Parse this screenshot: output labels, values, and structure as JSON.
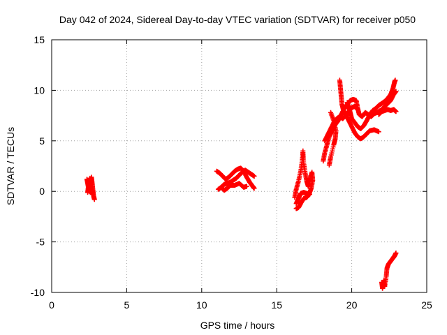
{
  "chart_data": {
    "type": "scatter",
    "title": "Day 042 of 2024, Sidereal Day-to-day VTEC variation (SDTVAR) for receiver p050",
    "xlabel": "GPS time / hours",
    "ylabel": "SDTVAR / TECUs",
    "xlim": [
      0,
      25
    ],
    "ylim": [
      -10,
      15
    ],
    "x_ticks": [
      0,
      5,
      10,
      15,
      20,
      25
    ],
    "y_ticks": [
      -10,
      -5,
      0,
      5,
      10,
      15
    ],
    "x_tick_labels": [
      "0",
      "5",
      "10",
      "15",
      "20",
      "25"
    ],
    "y_tick_labels": [
      "-10",
      "-5",
      "0",
      "5",
      "10",
      "15"
    ],
    "grid": true,
    "marker": "plus",
    "color": "#ff0000",
    "tracks": [
      [
        [
          2.35,
          1.2
        ],
        [
          2.4,
          0.8
        ],
        [
          2.45,
          0.4
        ],
        [
          2.5,
          0.0
        ],
        [
          2.55,
          0.3
        ],
        [
          2.6,
          0.9
        ],
        [
          2.65,
          1.4
        ],
        [
          2.7,
          0.8
        ],
        [
          2.75,
          0.1
        ],
        [
          2.8,
          -0.5
        ],
        [
          2.85,
          -0.8
        ]
      ],
      [
        [
          2.4,
          -0.1
        ],
        [
          2.45,
          0.5
        ],
        [
          2.5,
          1.0
        ],
        [
          2.55,
          1.3
        ],
        [
          2.6,
          0.6
        ],
        [
          2.65,
          0.2
        ],
        [
          2.7,
          -0.3
        ]
      ],
      [
        [
          11.0,
          2.0
        ],
        [
          11.2,
          1.8
        ],
        [
          11.4,
          1.5
        ],
        [
          11.6,
          1.2
        ],
        [
          11.8,
          1.4
        ],
        [
          12.0,
          1.7
        ],
        [
          12.2,
          2.0
        ],
        [
          12.4,
          2.2
        ],
        [
          12.6,
          2.3
        ],
        [
          12.8,
          2.0
        ],
        [
          13.0,
          1.4
        ],
        [
          13.2,
          0.9
        ],
        [
          13.4,
          0.5
        ],
        [
          13.5,
          0.3
        ]
      ],
      [
        [
          11.1,
          0.2
        ],
        [
          11.3,
          0.4
        ],
        [
          11.5,
          0.7
        ],
        [
          11.7,
          0.8
        ],
        [
          11.9,
          0.9
        ],
        [
          12.1,
          1.1
        ],
        [
          12.3,
          1.3
        ],
        [
          12.5,
          1.6
        ],
        [
          12.7,
          1.9
        ],
        [
          12.9,
          2.1
        ],
        [
          13.1,
          1.9
        ],
        [
          13.3,
          1.7
        ],
        [
          13.5,
          1.5
        ]
      ],
      [
        [
          11.3,
          0.4
        ],
        [
          11.5,
          0.1
        ],
        [
          11.7,
          0.3
        ],
        [
          11.9,
          0.6
        ],
        [
          12.2,
          0.6
        ],
        [
          12.5,
          0.8
        ],
        [
          12.8,
          0.4
        ],
        [
          13.0,
          0.5
        ]
      ],
      [
        [
          16.2,
          -0.6
        ],
        [
          16.3,
          0.2
        ],
        [
          16.45,
          1.0
        ],
        [
          16.6,
          2.0
        ],
        [
          16.7,
          3.0
        ],
        [
          16.75,
          4.0
        ],
        [
          16.8,
          2.8
        ],
        [
          16.9,
          1.8
        ],
        [
          17.0,
          1.0
        ],
        [
          17.1,
          0.5
        ],
        [
          17.2,
          1.2
        ],
        [
          17.35,
          1.9
        ],
        [
          17.4,
          1.1
        ],
        [
          17.3,
          0.3
        ],
        [
          17.15,
          -0.3
        ],
        [
          17.0,
          -0.6
        ],
        [
          16.8,
          -0.7
        ],
        [
          16.6,
          -1.2
        ],
        [
          16.45,
          -1.6
        ],
        [
          16.3,
          -1.7
        ]
      ],
      [
        [
          16.3,
          -1.2
        ],
        [
          16.45,
          -0.7
        ],
        [
          16.6,
          -0.2
        ],
        [
          16.8,
          -0.1
        ],
        [
          17.0,
          -0.2
        ],
        [
          17.2,
          -0.3
        ]
      ],
      [
        [
          18.1,
          3.0
        ],
        [
          18.2,
          3.8
        ],
        [
          18.35,
          4.6
        ],
        [
          18.5,
          5.4
        ],
        [
          18.7,
          6.0
        ],
        [
          18.9,
          6.6
        ],
        [
          19.1,
          7.0
        ],
        [
          19.3,
          7.6
        ],
        [
          19.5,
          8.2
        ],
        [
          19.7,
          8.6
        ],
        [
          19.9,
          9.0
        ],
        [
          20.1,
          9.1
        ],
        [
          20.3,
          9.0
        ],
        [
          20.4,
          8.2
        ],
        [
          20.5,
          7.6
        ],
        [
          20.7,
          7.4
        ],
        [
          20.9,
          7.8
        ],
        [
          21.1,
          7.6
        ],
        [
          21.3,
          7.4
        ],
        [
          21.5,
          7.7
        ],
        [
          21.7,
          7.8
        ],
        [
          21.9,
          8.0
        ]
      ],
      [
        [
          18.2,
          5.0
        ],
        [
          18.4,
          5.6
        ],
        [
          18.6,
          6.2
        ],
        [
          18.8,
          6.8
        ],
        [
          19.0,
          7.2
        ],
        [
          19.2,
          7.4
        ],
        [
          19.4,
          7.2
        ],
        [
          19.6,
          7.5
        ],
        [
          19.8,
          7.9
        ],
        [
          20.0,
          8.3
        ],
        [
          20.2,
          8.4
        ],
        [
          20.4,
          8.1
        ]
      ],
      [
        [
          18.5,
          2.6
        ],
        [
          18.6,
          3.4
        ],
        [
          18.8,
          4.6
        ],
        [
          18.9,
          5.2
        ],
        [
          18.95,
          6.0
        ],
        [
          18.8,
          7.0
        ],
        [
          18.6,
          7.8
        ]
      ],
      [
        [
          19.2,
          11.0
        ],
        [
          19.25,
          10.2
        ],
        [
          19.3,
          9.4
        ],
        [
          19.35,
          8.6
        ],
        [
          19.45,
          8.0
        ],
        [
          19.6,
          7.6
        ],
        [
          19.8,
          7.0
        ],
        [
          20.0,
          6.4
        ],
        [
          20.2,
          5.8
        ],
        [
          20.4,
          5.4
        ],
        [
          20.6,
          5.2
        ],
        [
          20.8,
          5.4
        ],
        [
          21.0,
          5.7
        ],
        [
          21.2,
          6.0
        ],
        [
          21.5,
          6.1
        ],
        [
          21.8,
          5.9
        ]
      ],
      [
        [
          19.7,
          8.8
        ],
        [
          19.8,
          8.3
        ],
        [
          19.9,
          7.8
        ],
        [
          20.0,
          7.2
        ],
        [
          20.2,
          6.8
        ],
        [
          20.4,
          6.4
        ],
        [
          20.6,
          6.2
        ],
        [
          20.8,
          6.5
        ],
        [
          21.0,
          7.0
        ],
        [
          21.2,
          7.6
        ],
        [
          21.4,
          8.0
        ],
        [
          21.6,
          8.2
        ],
        [
          21.8,
          8.5
        ],
        [
          22.0,
          8.7
        ],
        [
          22.2,
          8.9
        ],
        [
          22.4,
          9.2
        ],
        [
          22.6,
          9.6
        ],
        [
          22.75,
          10.2
        ],
        [
          22.85,
          10.8
        ],
        [
          22.9,
          11.0
        ]
      ],
      [
        [
          21.8,
          7.6
        ],
        [
          22.0,
          7.9
        ],
        [
          22.2,
          8.0
        ],
        [
          22.4,
          8.1
        ],
        [
          22.6,
          8.0
        ],
        [
          22.8,
          8.1
        ],
        [
          22.95,
          7.9
        ]
      ],
      [
        [
          22.0,
          8.1
        ],
        [
          22.2,
          8.4
        ],
        [
          22.4,
          8.7
        ],
        [
          22.6,
          9.0
        ],
        [
          22.8,
          9.6
        ],
        [
          22.95,
          9.9
        ]
      ],
      [
        [
          22.0,
          -9.0
        ],
        [
          22.05,
          -9.6
        ],
        [
          22.1,
          -9.2
        ],
        [
          22.15,
          -8.8
        ],
        [
          22.2,
          -9.4
        ],
        [
          22.3,
          -8.4
        ],
        [
          22.35,
          -7.6
        ],
        [
          22.45,
          -7.2
        ],
        [
          22.6,
          -6.9
        ],
        [
          22.75,
          -6.6
        ],
        [
          22.85,
          -6.4
        ],
        [
          22.95,
          -6.1
        ]
      ]
    ]
  }
}
